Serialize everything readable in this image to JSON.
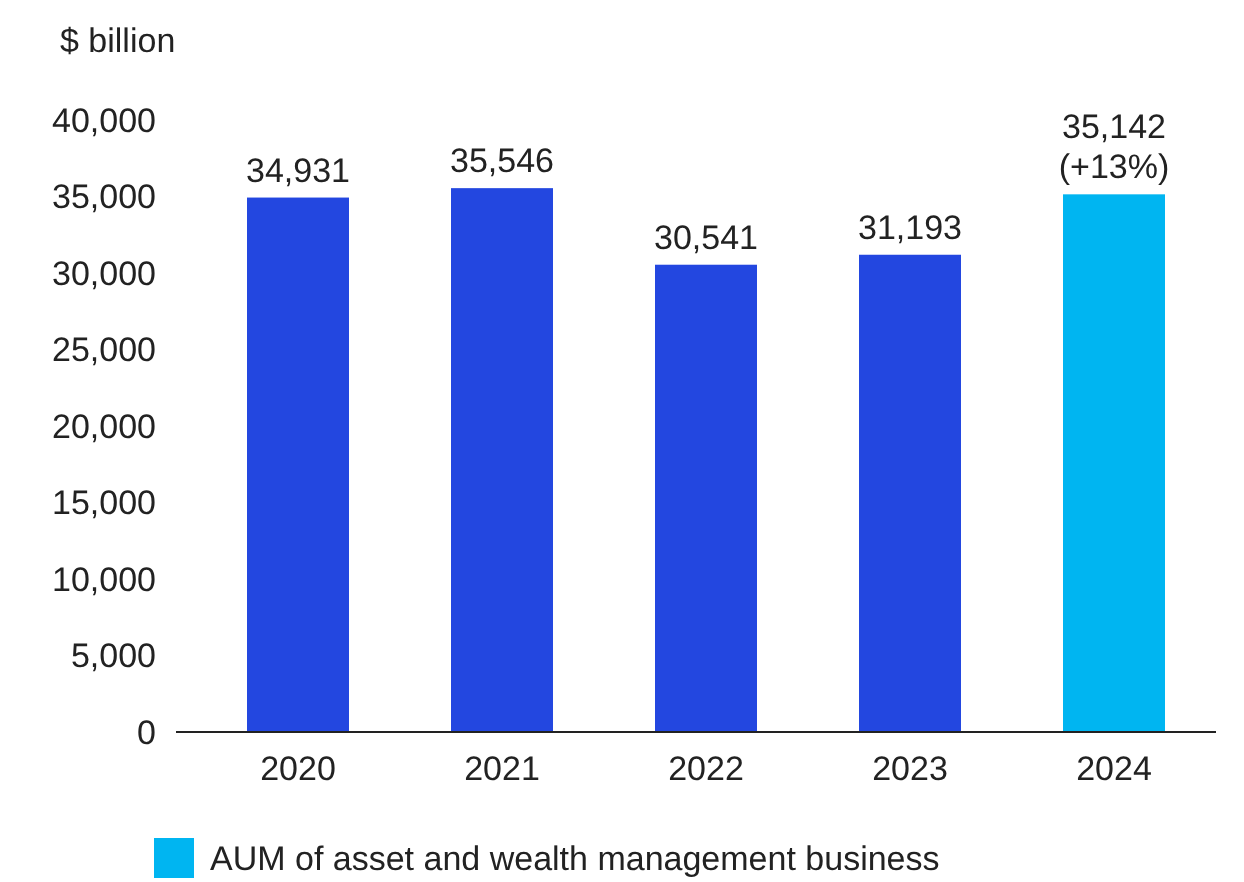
{
  "chart_data": {
    "type": "bar",
    "ylabel": "$ billion",
    "categories": [
      "2020",
      "2021",
      "2022",
      "2023",
      "2024"
    ],
    "series": [
      {
        "color": "#2347e0",
        "values": [
          34931,
          35546,
          30541,
          31193,
          null
        ],
        "value_labels": [
          "34,931",
          "35,546",
          "30,541",
          "31,193",
          null
        ]
      },
      {
        "name": "AUM of asset and wealth management business",
        "color": "#00b5f1",
        "values": [
          null,
          null,
          null,
          null,
          35142
        ],
        "value_labels": [
          null,
          null,
          null,
          null,
          "35,142\n(+13%)"
        ]
      }
    ],
    "ylim": [
      0,
      40000
    ],
    "yticks": [
      0,
      {
        "value": 5000,
        "label": "5,000"
      },
      {
        "value": 10000,
        "label": "10,000"
      },
      {
        "value": 15000,
        "label": "15,000"
      },
      {
        "value": 20000,
        "label": "20,000"
      },
      {
        "value": 25000,
        "label": "25,000"
      },
      {
        "value": 30000,
        "label": "30,000"
      },
      {
        "value": 35000,
        "label": "35,000"
      },
      {
        "value": 40000,
        "label": "40,000"
      }
    ],
    "grid": false,
    "legend": "bottom"
  }
}
